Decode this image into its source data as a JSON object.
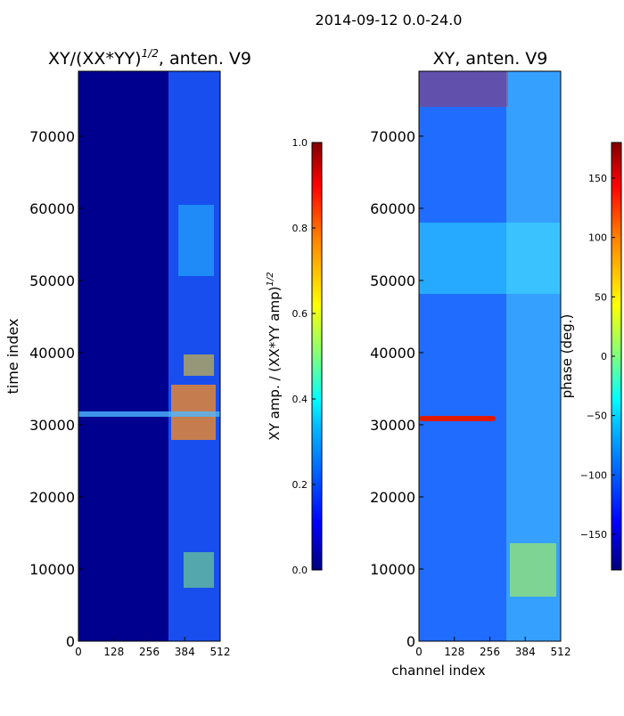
{
  "figure": {
    "suptitle": "2014-09-12 0.0-24.0",
    "shared_ylabel": "time index",
    "shared_xlabel": "channel index"
  },
  "colors": {
    "jet": [
      "#00007f",
      "#0000ff",
      "#007fff",
      "#00ffff",
      "#7fff7f",
      "#ffff00",
      "#ff7f00",
      "#ff0000",
      "#7f0000"
    ]
  },
  "chart_data": [
    {
      "type": "heatmap",
      "title_prefix": "XY/(XX*YY)",
      "title_sup": "1/2",
      "title_suffix": ", anten. V9",
      "xlabel": "channel index",
      "ylabel": "time index",
      "xlim": [
        0,
        512
      ],
      "ylim": [
        0,
        79000
      ],
      "x_ticks": [
        0,
        128,
        256,
        384,
        512
      ],
      "y_ticks": [
        0,
        10000,
        20000,
        30000,
        40000,
        50000,
        60000,
        70000
      ],
      "colorbar": {
        "label": "XY amp. / (XX*YY amp)",
        "label_sup": "1/2",
        "range": [
          0.0,
          1.0
        ],
        "ticks": [
          "0.0",
          "0.2",
          "0.4",
          "0.6",
          "0.8",
          "1.0"
        ]
      }
    },
    {
      "type": "heatmap",
      "title": "XY, anten. V9",
      "xlabel": "channel index",
      "ylabel": "",
      "xlim": [
        0,
        512
      ],
      "ylim": [
        0,
        79000
      ],
      "x_ticks": [
        0,
        128,
        256,
        384,
        512
      ],
      "y_ticks": [
        0,
        10000,
        20000,
        30000,
        40000,
        50000,
        60000,
        70000
      ],
      "colorbar": {
        "label": "phase (deg.)",
        "range": [
          -180,
          180
        ],
        "ticks": [
          "−150",
          "−100",
          "−50",
          "0",
          "50",
          "100",
          "150"
        ]
      }
    }
  ]
}
